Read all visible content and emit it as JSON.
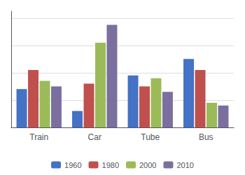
{
  "chart_data": {
    "type": "bar",
    "categories": [
      "Train",
      "Car",
      "Tube",
      "Bus"
    ],
    "series": [
      {
        "name": "1960",
        "color": "#4472C4",
        "values": [
          28,
          12,
          38,
          50
        ]
      },
      {
        "name": "1980",
        "color": "#C0504D",
        "values": [
          42,
          32,
          30,
          42
        ]
      },
      {
        "name": "2000",
        "color": "#9BBB59",
        "values": [
          34,
          62,
          36,
          18
        ]
      },
      {
        "name": "2010",
        "color": "#7B6FA0",
        "values": [
          30,
          75,
          26,
          16
        ]
      }
    ],
    "ylim": [
      0,
      85
    ],
    "yticks": [
      0,
      20,
      40,
      60,
      80
    ],
    "grid": true,
    "legend": "bottom",
    "tick_labels": "x"
  }
}
